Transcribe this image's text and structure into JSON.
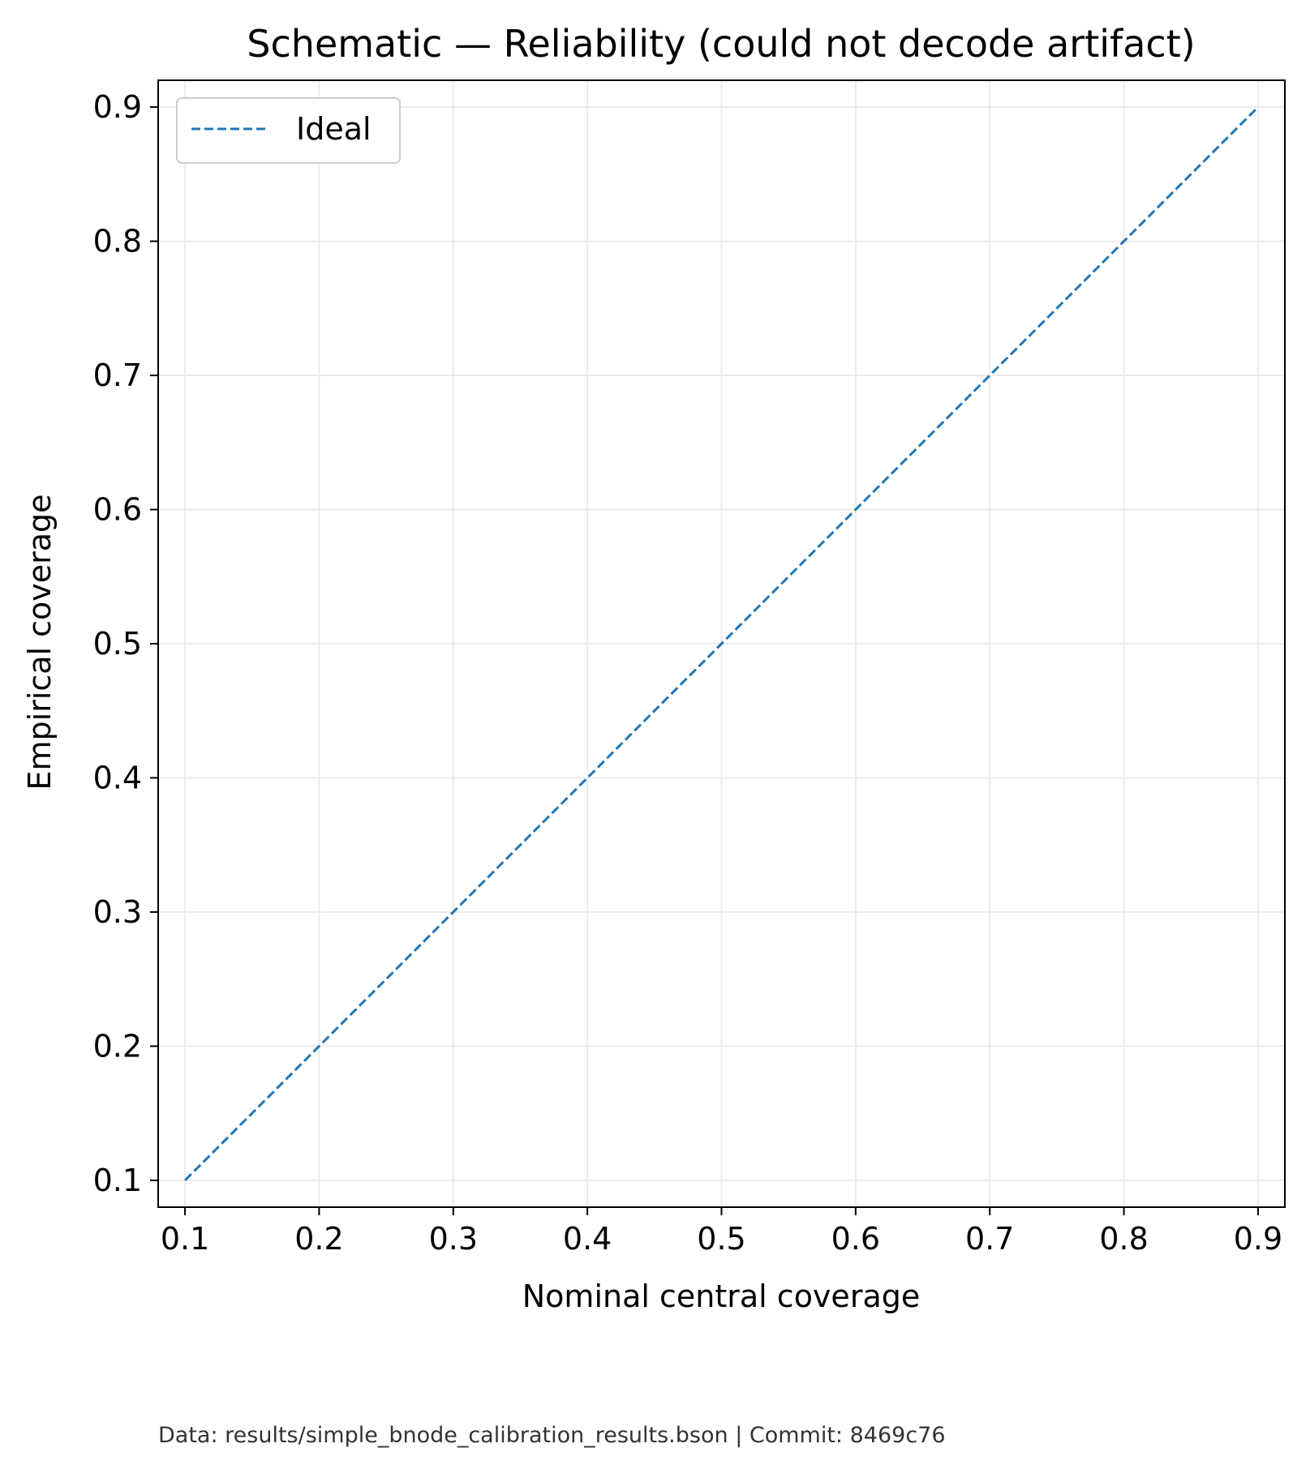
{
  "chart_data": {
    "type": "line",
    "title": "Schematic — Reliability (could not decode artifact)",
    "xlabel": "Nominal central coverage",
    "ylabel": "Empirical coverage",
    "xlim": [
      0.08,
      0.92
    ],
    "ylim": [
      0.08,
      0.92
    ],
    "x_ticks": [
      0.1,
      0.2,
      0.3,
      0.4,
      0.5,
      0.6,
      0.7,
      0.8,
      0.9
    ],
    "y_ticks": [
      0.1,
      0.2,
      0.3,
      0.4,
      0.5,
      0.6,
      0.7,
      0.8,
      0.9
    ],
    "x_tick_labels": [
      "0.1",
      "0.2",
      "0.3",
      "0.4",
      "0.5",
      "0.6",
      "0.7",
      "0.8",
      "0.9"
    ],
    "y_tick_labels": [
      "0.1",
      "0.2",
      "0.3",
      "0.4",
      "0.5",
      "0.6",
      "0.7",
      "0.8",
      "0.9"
    ],
    "grid": true,
    "legend_position": "top-left",
    "series": [
      {
        "name": "Ideal",
        "style": "dashed",
        "color": "#1f77b4",
        "x": [
          0.1,
          0.9
        ],
        "y": [
          0.1,
          0.9
        ]
      }
    ]
  },
  "footer": {
    "text": "Data: results/simple_bnode_calibration_results.bson | Commit: 8469c76"
  }
}
